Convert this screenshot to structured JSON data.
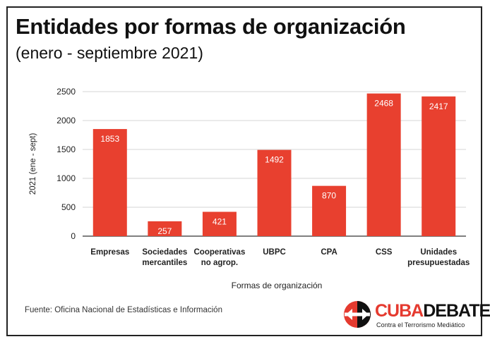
{
  "header": {
    "title": "Entidades por formas de organización",
    "subtitle": "(enero - septiembre 2021)"
  },
  "chart_data": {
    "type": "bar",
    "categories": [
      [
        "Empresas"
      ],
      [
        "Sociedades",
        "mercantiles"
      ],
      [
        "Cooperativas",
        "no agrop."
      ],
      [
        "UBPC"
      ],
      [
        "CPA"
      ],
      [
        "CSS"
      ],
      [
        "Unidades",
        "presupuestadas"
      ]
    ],
    "values": [
      1853,
      257,
      421,
      1492,
      870,
      2468,
      2417
    ],
    "xlabel": "Formas de organización",
    "ylabel": "2021 (ene - sept)",
    "ylim": [
      0,
      2500
    ],
    "yticks": [
      0,
      500,
      1000,
      1500,
      2000,
      2500
    ],
    "grid": true,
    "bar_color": "#e8402f",
    "data_label_color": "#ffffff"
  },
  "footer": {
    "source": "Fuente: Oficina Nacional de Estadísticas e Información"
  },
  "logo": {
    "word_1": "CUBA",
    "word_2": "DEBATE",
    "tagline": "Contra el Terrorismo Mediático",
    "icon": "cubadebate-arrows-icon",
    "colors": {
      "red": "#e53a2f",
      "dark": "#111111"
    }
  }
}
